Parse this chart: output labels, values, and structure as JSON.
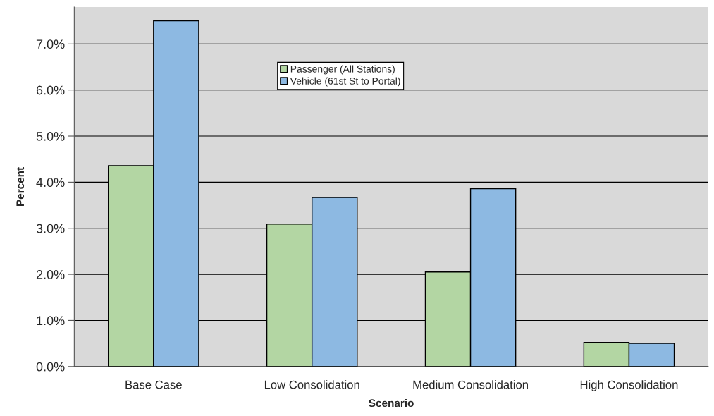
{
  "chart_data": {
    "type": "bar",
    "xlabel": "Scenario",
    "ylabel": "Percent",
    "categories": [
      "Base Case",
      "Low Consolidation",
      "Medium Consolidation",
      "High Consolidation"
    ],
    "series": [
      {
        "name": "Passenger (All Stations)",
        "color": "#b3d6a3",
        "values": [
          4.36,
          3.09,
          2.05,
          0.52
        ]
      },
      {
        "name": "Vehicle (61st St to Portal)",
        "color": "#8db9e2",
        "values": [
          7.5,
          3.67,
          3.86,
          0.5
        ]
      }
    ],
    "ylim": [
      0,
      7.8
    ],
    "yticks": [
      {
        "value": 0,
        "label": "0.0%"
      },
      {
        "value": 1,
        "label": "1.0%"
      },
      {
        "value": 2,
        "label": "2.0%"
      },
      {
        "value": 3,
        "label": "3.0%"
      },
      {
        "value": 4,
        "label": "4.0%"
      },
      {
        "value": 5,
        "label": "5.0%"
      },
      {
        "value": 6,
        "label": "6.0%"
      },
      {
        "value": 7,
        "label": "7.0%"
      }
    ],
    "grid": "y",
    "legend": "top"
  }
}
